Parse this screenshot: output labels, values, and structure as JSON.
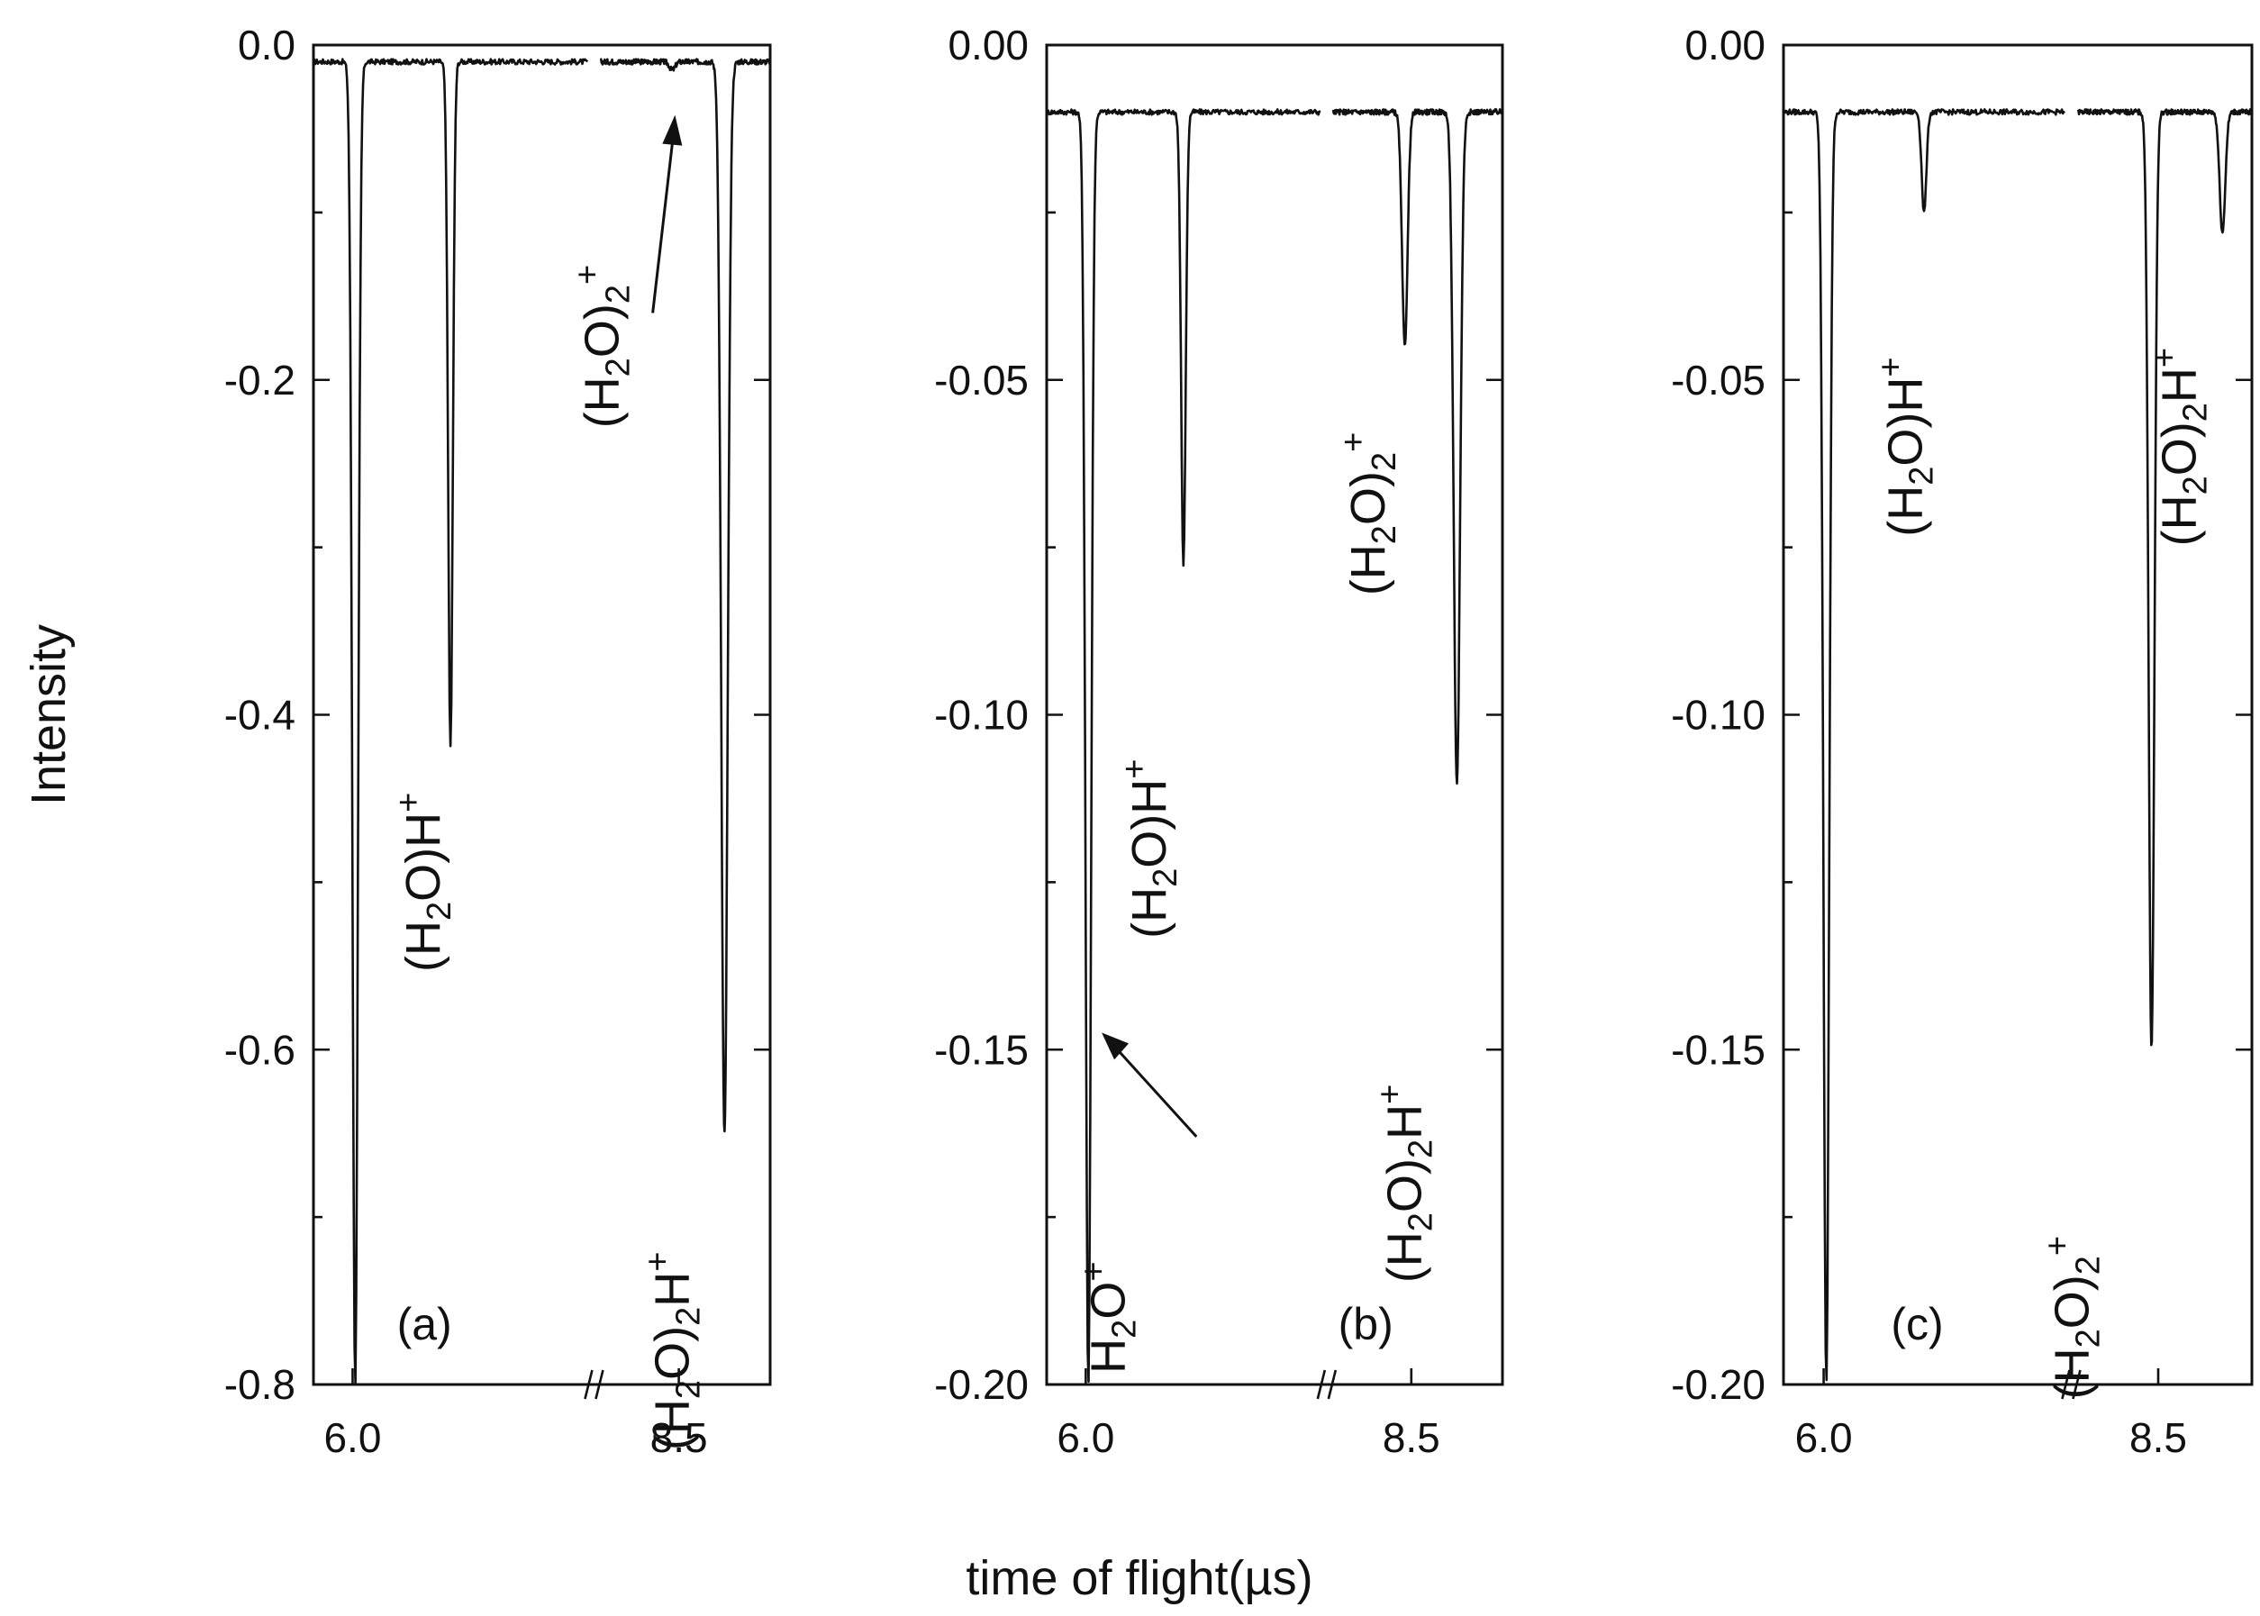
{
  "figure": {
    "xlabel": "time of flight(µs)"
  },
  "chart_data": [
    {
      "type": "line",
      "panel_label": "(a)",
      "ylabel": "Intensity",
      "xlim": [
        5.7,
        9.2
      ],
      "ylim": [
        -0.8,
        0.0
      ],
      "xticks": [
        6.0,
        8.5
      ],
      "xtick_labels": [
        "6.0",
        "8.5"
      ],
      "yticks": [
        0.0,
        -0.2,
        -0.4,
        -0.6,
        -0.8
      ],
      "ytick_labels": [
        "0.0",
        "-0.2",
        "-0.4",
        "-0.6",
        "-0.8"
      ],
      "axis_break_x": 7.85,
      "baseline": -0.01,
      "peaks": [
        {
          "x": 6.02,
          "depth": -0.8,
          "width": 0.03
        },
        {
          "x": 6.75,
          "depth": -0.42,
          "width": 0.025
        },
        {
          "x": 8.45,
          "depth": -0.015,
          "width": 0.03
        },
        {
          "x": 8.85,
          "depth": -0.65,
          "width": 0.035
        }
      ],
      "annotations": [
        {
          "ion": "h2oh",
          "text": [
            "(H",
            "2",
            "O)H",
            "+"
          ],
          "x": 6.75,
          "y": -0.5
        },
        {
          "ion": "dimer_plus",
          "text": [
            "(H",
            "2",
            "O)",
            "2",
            "+"
          ],
          "x": 8.45,
          "y": -0.18
        },
        {
          "ion": "dimer_h",
          "text": [
            "(H",
            "2",
            "O)",
            "2",
            "H",
            "+"
          ],
          "x": 8.85,
          "y": -0.78
        }
      ]
    },
    {
      "type": "line",
      "panel_label": "(b)",
      "ylim": [
        -0.2,
        0.0
      ],
      "xlim": [
        5.7,
        9.2
      ],
      "xticks": [
        6.0,
        8.5
      ],
      "xtick_labels": [
        "6.0",
        "8.5"
      ],
      "yticks": [
        0.0,
        -0.05,
        -0.1,
        -0.15,
        -0.2
      ],
      "ytick_labels": [
        "0.00",
        "-0.05",
        "-0.10",
        "-0.15",
        "-0.20"
      ],
      "axis_break_x": 7.85,
      "baseline": -0.01,
      "peaks": [
        {
          "x": 6.02,
          "depth": -0.2,
          "width": 0.03
        },
        {
          "x": 6.75,
          "depth": -0.078,
          "width": 0.025
        },
        {
          "x": 8.45,
          "depth": -0.045,
          "width": 0.03
        },
        {
          "x": 8.85,
          "depth": -0.11,
          "width": 0.035
        }
      ],
      "annotations": [
        {
          "ion": "h2o_plus",
          "text": [
            "H",
            "2",
            "O",
            "+"
          ],
          "x": 6.3,
          "y": -0.19
        },
        {
          "ion": "h2oh",
          "text": [
            "(H",
            "2",
            "O)H",
            "+"
          ],
          "x": 6.75,
          "y": -0.12
        },
        {
          "ion": "dimer_plus",
          "text": [
            "(H",
            "2",
            "O)",
            "2",
            "+"
          ],
          "x": 8.5,
          "y": -0.07
        },
        {
          "ion": "dimer_h",
          "text": [
            "(H",
            "2",
            "O)",
            "2",
            "H",
            "+"
          ],
          "x": 8.85,
          "y": -0.17
        }
      ]
    },
    {
      "type": "line",
      "panel_label": "(c)",
      "ylim": [
        -0.2,
        0.0
      ],
      "xlim": [
        5.7,
        9.2
      ],
      "xticks": [
        6.0,
        8.5
      ],
      "xtick_labels": [
        "6.0",
        "8.5"
      ],
      "yticks": [
        0.0,
        -0.05,
        -0.1,
        -0.15,
        -0.2
      ],
      "ytick_labels": [
        "0.00",
        "-0.05",
        "-0.10",
        "-0.15",
        "-0.20"
      ],
      "axis_break_x": 7.85,
      "baseline": -0.01,
      "peaks": [
        {
          "x": 6.02,
          "depth": -0.2,
          "width": 0.03
        },
        {
          "x": 6.75,
          "depth": -0.025,
          "width": 0.025
        },
        {
          "x": 8.45,
          "depth": -0.15,
          "width": 0.03
        },
        {
          "x": 8.98,
          "depth": -0.028,
          "width": 0.03
        }
      ],
      "annotations": [
        {
          "ion": "h2oh",
          "text": [
            "(H",
            "2",
            "O)H",
            "+"
          ],
          "x": 6.8,
          "y": -0.06
        },
        {
          "ion": "dimer_plus",
          "text": [
            "(H",
            "2",
            "O)",
            "2",
            "+"
          ],
          "x": 8.45,
          "y": -0.19
        },
        {
          "ion": "dimer_h",
          "text": [
            "(H",
            "2",
            "O)",
            "2",
            "H",
            "+"
          ],
          "x": 9.05,
          "y": -0.06
        }
      ]
    }
  ]
}
